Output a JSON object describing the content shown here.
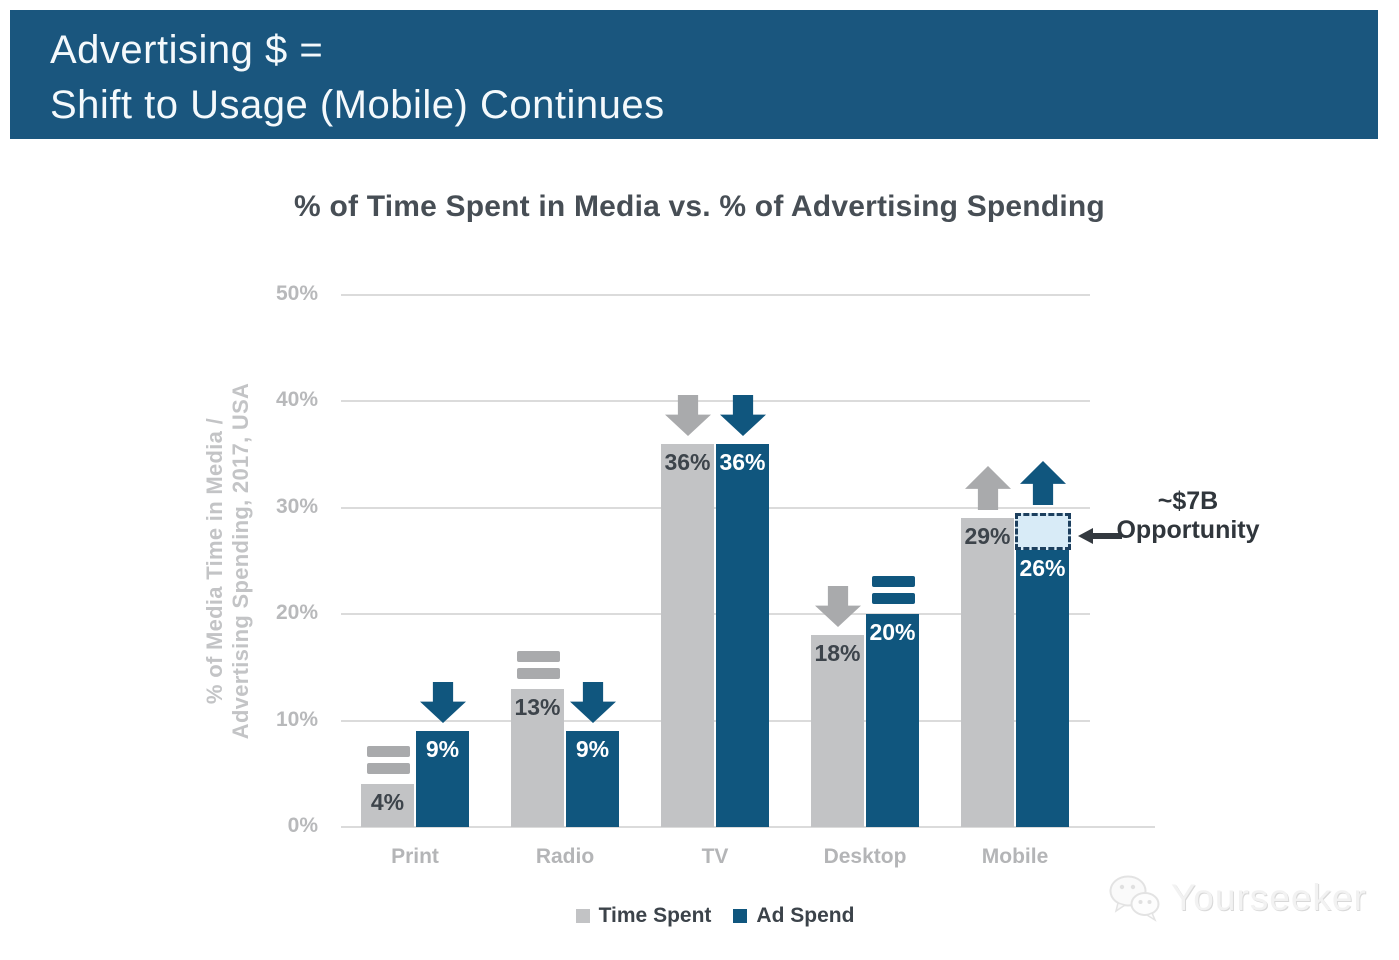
{
  "header": {
    "line1": "Advertising $ =",
    "line2": "Shift to Usage (Mobile) Continues"
  },
  "chart": {
    "ylabel_line1": "% of Media Time in Media /",
    "ylabel_line2": "Advertising Spending, 2017, USA"
  },
  "chart_data": {
    "type": "bar",
    "title": "% of Time Spent in Media vs. % of Advertising Spending",
    "xlabel": "",
    "ylabel": "% of Media Time in Media / Advertising Spending, 2017, USA",
    "categories": [
      "Print",
      "Radio",
      "TV",
      "Desktop",
      "Mobile"
    ],
    "series": [
      {
        "name": "Time Spent",
        "color_key": "gray",
        "values": [
          4,
          13,
          36,
          18,
          29
        ],
        "trends": [
          "equal",
          "equal",
          "down",
          "down",
          "up"
        ]
      },
      {
        "name": "Ad Spend",
        "color_key": "blue",
        "values": [
          9,
          9,
          36,
          20,
          26
        ],
        "trends": [
          "down",
          "down",
          "down",
          "equal",
          "up"
        ]
      }
    ],
    "y_ticks": [
      0,
      10,
      20,
      30,
      40,
      50
    ],
    "y_tick_suffix": "%",
    "ylim": [
      0,
      50
    ],
    "grid": true,
    "legend_position": "bottom",
    "value_label_suffix": "%",
    "annotation": {
      "line1": "~$7B",
      "line2": "Opportunity",
      "target_category": "Mobile",
      "target_series": "Ad Spend",
      "box_top_value": 29,
      "box_bottom_value": 26
    }
  },
  "watermark": {
    "text": "Yourseeker",
    "icon": "wechat-icon"
  },
  "colors": {
    "header_bg": "#1A567E",
    "header_text": "#F4F9FC",
    "title_text": "#474E55",
    "bar_gray": "#C2C3C5",
    "bar_blue": "#10567E",
    "arrow_gray": "#A9AAAC",
    "gridline": "#DBDBDB",
    "tick_text": "#B8B9BB",
    "category_text": "#B4B5B7",
    "axis_label_text": "#C3C4C6",
    "value_dark": "#3D444B",
    "value_light": "#FFFFFF",
    "opportunity_fill": "#D8EBF7",
    "opportunity_border": "#1C3F5E",
    "annotation_text": "#30363C",
    "annotation_arrow": "#33393F",
    "legend_text": "#3C434A",
    "watermark_text": "#F2F2F2",
    "background": "#FFFFFF"
  }
}
